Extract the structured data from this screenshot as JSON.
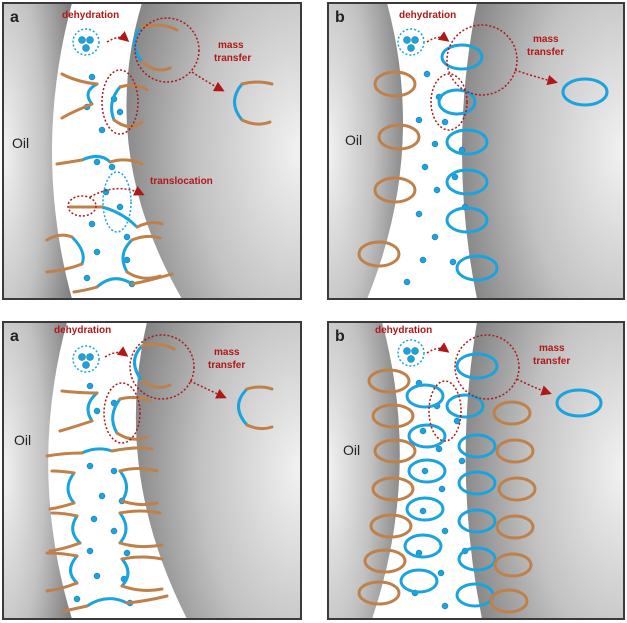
{
  "panels": [
    {
      "id": "top-left",
      "letter": "a",
      "oil": "Oil",
      "dehydration": "dehydration",
      "mass": "mass",
      "transfer": "transfer",
      "translocation": "translocation"
    },
    {
      "id": "top-right",
      "letter": "b",
      "oil": "Oil",
      "dehydration": "dehydration",
      "mass": "mass",
      "transfer": "transfer"
    },
    {
      "id": "bottom-left",
      "letter": "a",
      "oil": "Oil",
      "dehydration": "dehydration",
      "mass": "mass",
      "transfer": "transfer"
    },
    {
      "id": "bottom-right",
      "letter": "b",
      "oil": "Oil",
      "dehydration": "dehydration",
      "mass": "mass",
      "transfer": "transfer"
    }
  ],
  "colors": {
    "frame": "#3a3a3a",
    "oil_light": "#e0e0e0",
    "oil_dark": "#8e8e8e",
    "water": "#ffffff",
    "hydrophilic": "#1aa3df",
    "hydrophobic": "#c0804a",
    "annotation": "#b01818",
    "label": "#222222"
  },
  "icons": [
    "water-molecule-icon",
    "emulsifier-chain-icon",
    "arrow-icon"
  ]
}
